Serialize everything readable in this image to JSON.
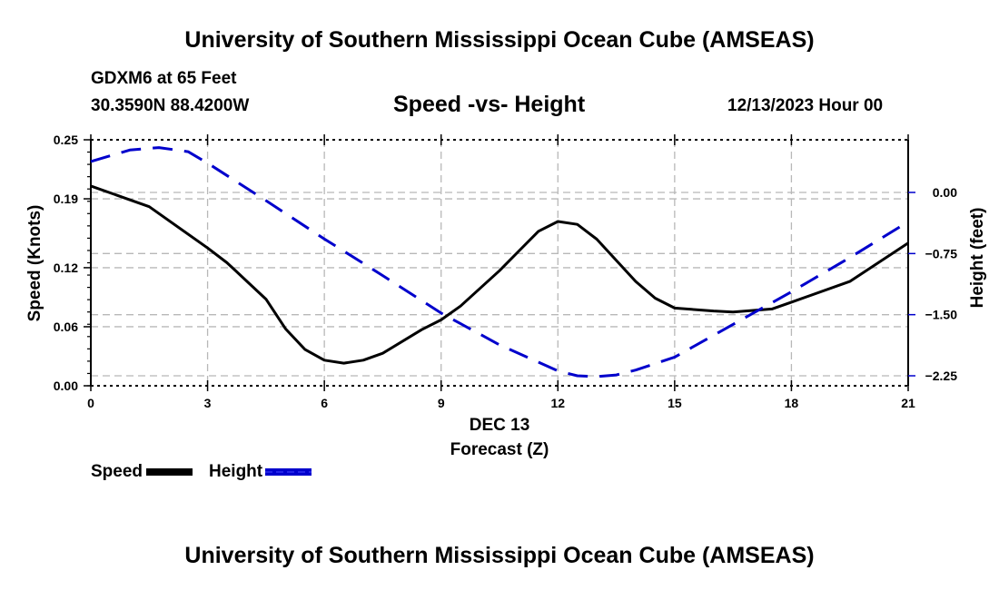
{
  "header": {
    "title": "University of Southern Mississippi Ocean Cube (AMSEAS)",
    "station": "GDXM6 at 65 Feet",
    "coordinates": "30.3590N  88.4200W",
    "subtitle": "Speed -vs- Height",
    "datetime": "12/13/2023 Hour 00"
  },
  "footer": {
    "title": "University of Southern Mississippi Ocean Cube (AMSEAS)"
  },
  "chart_data": {
    "type": "line",
    "title": "Speed -vs- Height",
    "xlabel": "Forecast (Z)",
    "xlabel_date": "DEC 13",
    "ylabel": "Speed (Knots)",
    "y2label": "Height (feet)",
    "xlim": [
      0,
      21
    ],
    "ylim": [
      0,
      0.25
    ],
    "y2lim": [
      -2.39,
      0.63
    ],
    "grid": true,
    "legend_position": "bottom-left",
    "x_ticks": [
      0,
      3,
      6,
      9,
      12,
      15,
      18,
      21
    ],
    "x_tick_labels": [
      "0",
      "3",
      "6",
      "9",
      "12",
      "15",
      "18",
      "21"
    ],
    "y_ticks": [
      0.0,
      0.06,
      0.12,
      0.19,
      0.25
    ],
    "y_tick_labels": [
      "0.00",
      "0.06",
      "0.12",
      "0.19",
      "0.25"
    ],
    "y2_ticks": [
      0.0,
      -0.75,
      -1.5,
      -2.25
    ],
    "y2_tick_labels": [
      "0.00",
      "−0.75",
      "−1.50",
      "−2.25"
    ],
    "series": [
      {
        "name": "Speed",
        "axis": "left",
        "color": "#000000",
        "style": "solid",
        "x": [
          0,
          1.5,
          3,
          3.5,
          4.5,
          5,
          5.5,
          6,
          6.5,
          7,
          7.5,
          8.5,
          9,
          9.5,
          10.5,
          11,
          11.5,
          12,
          12.5,
          13,
          14,
          14.5,
          15,
          16,
          16.5,
          17.5,
          18,
          19.5,
          21
        ],
        "values": [
          0.203,
          0.182,
          0.14,
          0.125,
          0.088,
          0.058,
          0.037,
          0.026,
          0.023,
          0.026,
          0.033,
          0.057,
          0.067,
          0.081,
          0.117,
          0.137,
          0.157,
          0.167,
          0.164,
          0.149,
          0.106,
          0.089,
          0.079,
          0.076,
          0.075,
          0.078,
          0.085,
          0.106,
          0.145
        ]
      },
      {
        "name": "Height",
        "axis": "right",
        "color": "#0000cc",
        "style": "dashed",
        "x": [
          0,
          1,
          1.75,
          2.5,
          3,
          4.5,
          6,
          7.5,
          9,
          10.5,
          12,
          12.5,
          13,
          13.5,
          14,
          15,
          16.5,
          18,
          19.5,
          21
        ],
        "values": [
          0.38,
          0.52,
          0.55,
          0.5,
          0.36,
          -0.1,
          -0.57,
          -1.02,
          -1.48,
          -1.87,
          -2.19,
          -2.25,
          -2.26,
          -2.24,
          -2.18,
          -2.02,
          -1.62,
          -1.22,
          -0.8,
          -0.36
        ]
      }
    ]
  }
}
